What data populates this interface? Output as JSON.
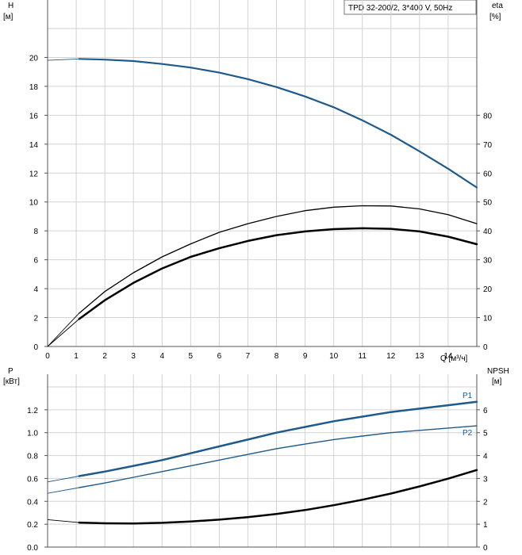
{
  "chart_data": [
    {
      "type": "line",
      "title": "TPD 32-200/2, 3*400 V, 50Hz",
      "xlabel": "Q [м³/ч]",
      "x_ticks": [
        0,
        1,
        2,
        3,
        4,
        5,
        6,
        7,
        8,
        9,
        10,
        11,
        12,
        13,
        14
      ],
      "xlim": [
        0,
        15
      ],
      "left_axis": {
        "label_line1": "H",
        "label_line2": "[м]",
        "ticks": [
          0,
          2,
          4,
          6,
          8,
          10,
          12,
          14,
          16,
          18,
          20
        ],
        "lim": [
          0,
          22
        ]
      },
      "right_axis": {
        "label_line1": "eta",
        "label_line2": "[%]",
        "ticks": [
          0,
          10,
          20,
          30,
          40,
          50,
          60,
          70,
          80
        ],
        "lim": [
          0,
          110
        ]
      },
      "grid": true,
      "series": [
        {
          "name": "",
          "axis": "left",
          "color": "#1f5a8c",
          "x": [
            0,
            1.1,
            2,
            3,
            4,
            5,
            6,
            7,
            8,
            9,
            10,
            11,
            12,
            13,
            14,
            15
          ],
          "y": [
            19.8,
            19.9,
            19.85,
            19.75,
            19.55,
            19.3,
            18.95,
            18.5,
            17.95,
            17.3,
            16.55,
            15.65,
            14.65,
            13.5,
            12.3,
            11.0
          ]
        },
        {
          "name": "",
          "axis": "right",
          "color": "#000000",
          "x": [
            0,
            1.1,
            2,
            3,
            4,
            5,
            6,
            7,
            8,
            9,
            10,
            11,
            12,
            13,
            14,
            15
          ],
          "y": [
            0,
            11.5,
            19,
            25.5,
            31,
            35.5,
            39.5,
            42.5,
            45,
            47,
            48.2,
            48.7,
            48.6,
            47.6,
            45.6,
            42.5
          ]
        },
        {
          "name": "",
          "axis": "right",
          "color": "#000000",
          "x": [
            0,
            1.1,
            2,
            3,
            4,
            5,
            6,
            7,
            8,
            9,
            10,
            11,
            12,
            13,
            14,
            15
          ],
          "y": [
            0,
            9.5,
            16,
            22,
            27,
            31,
            34,
            36.5,
            38.5,
            39.8,
            40.6,
            40.9,
            40.7,
            39.8,
            38.0,
            35.4
          ]
        }
      ]
    },
    {
      "type": "line",
      "title": "",
      "x_ticks": [
        0,
        1,
        2,
        3,
        4,
        5,
        6,
        7,
        8,
        9,
        10,
        11,
        12,
        13,
        14
      ],
      "xlim": [
        0,
        15
      ],
      "left_axis": {
        "label_line1": "P",
        "label_line2": "[кВт]",
        "ticks": [
          0.0,
          0.2,
          0.4,
          0.6,
          0.8,
          1.0,
          1.2
        ],
        "tick_labels": [
          "0.0",
          "0.2",
          "0.4",
          "0.6",
          "0.8",
          "1.0",
          "1.2"
        ],
        "lim": [
          0,
          1.4
        ]
      },
      "right_axis": {
        "label_line1": "NPSH",
        "label_line2": "[м]",
        "ticks": [
          0,
          1,
          2,
          3,
          4,
          5,
          6
        ],
        "lim": [
          0,
          7
        ]
      },
      "grid": true,
      "series": [
        {
          "name": "P1",
          "axis": "left",
          "color": "#1f5a8c",
          "x": [
            0,
            1.1,
            2,
            3,
            4,
            5,
            6,
            7,
            8,
            9,
            10,
            11,
            12,
            13,
            14,
            15
          ],
          "y": [
            0.57,
            0.62,
            0.66,
            0.71,
            0.76,
            0.82,
            0.88,
            0.94,
            1.0,
            1.05,
            1.1,
            1.14,
            1.18,
            1.21,
            1.24,
            1.27
          ]
        },
        {
          "name": "P2",
          "axis": "left",
          "color": "#1f5a8c",
          "x": [
            0,
            1.1,
            2,
            3,
            4,
            5,
            6,
            7,
            8,
            9,
            10,
            11,
            12,
            13,
            14,
            15
          ],
          "y": [
            0.47,
            0.52,
            0.56,
            0.61,
            0.66,
            0.71,
            0.76,
            0.81,
            0.86,
            0.9,
            0.94,
            0.97,
            1.0,
            1.02,
            1.04,
            1.06
          ]
        },
        {
          "name": "",
          "axis": "right",
          "color": "#000000",
          "x": [
            0,
            1.1,
            2,
            3,
            4,
            5,
            6,
            7,
            8,
            9,
            10,
            11,
            12,
            13,
            14,
            15
          ],
          "y": [
            1.2,
            1.07,
            1.04,
            1.03,
            1.06,
            1.12,
            1.2,
            1.31,
            1.45,
            1.62,
            1.83,
            2.07,
            2.34,
            2.65,
            2.99,
            3.37
          ]
        }
      ]
    }
  ]
}
